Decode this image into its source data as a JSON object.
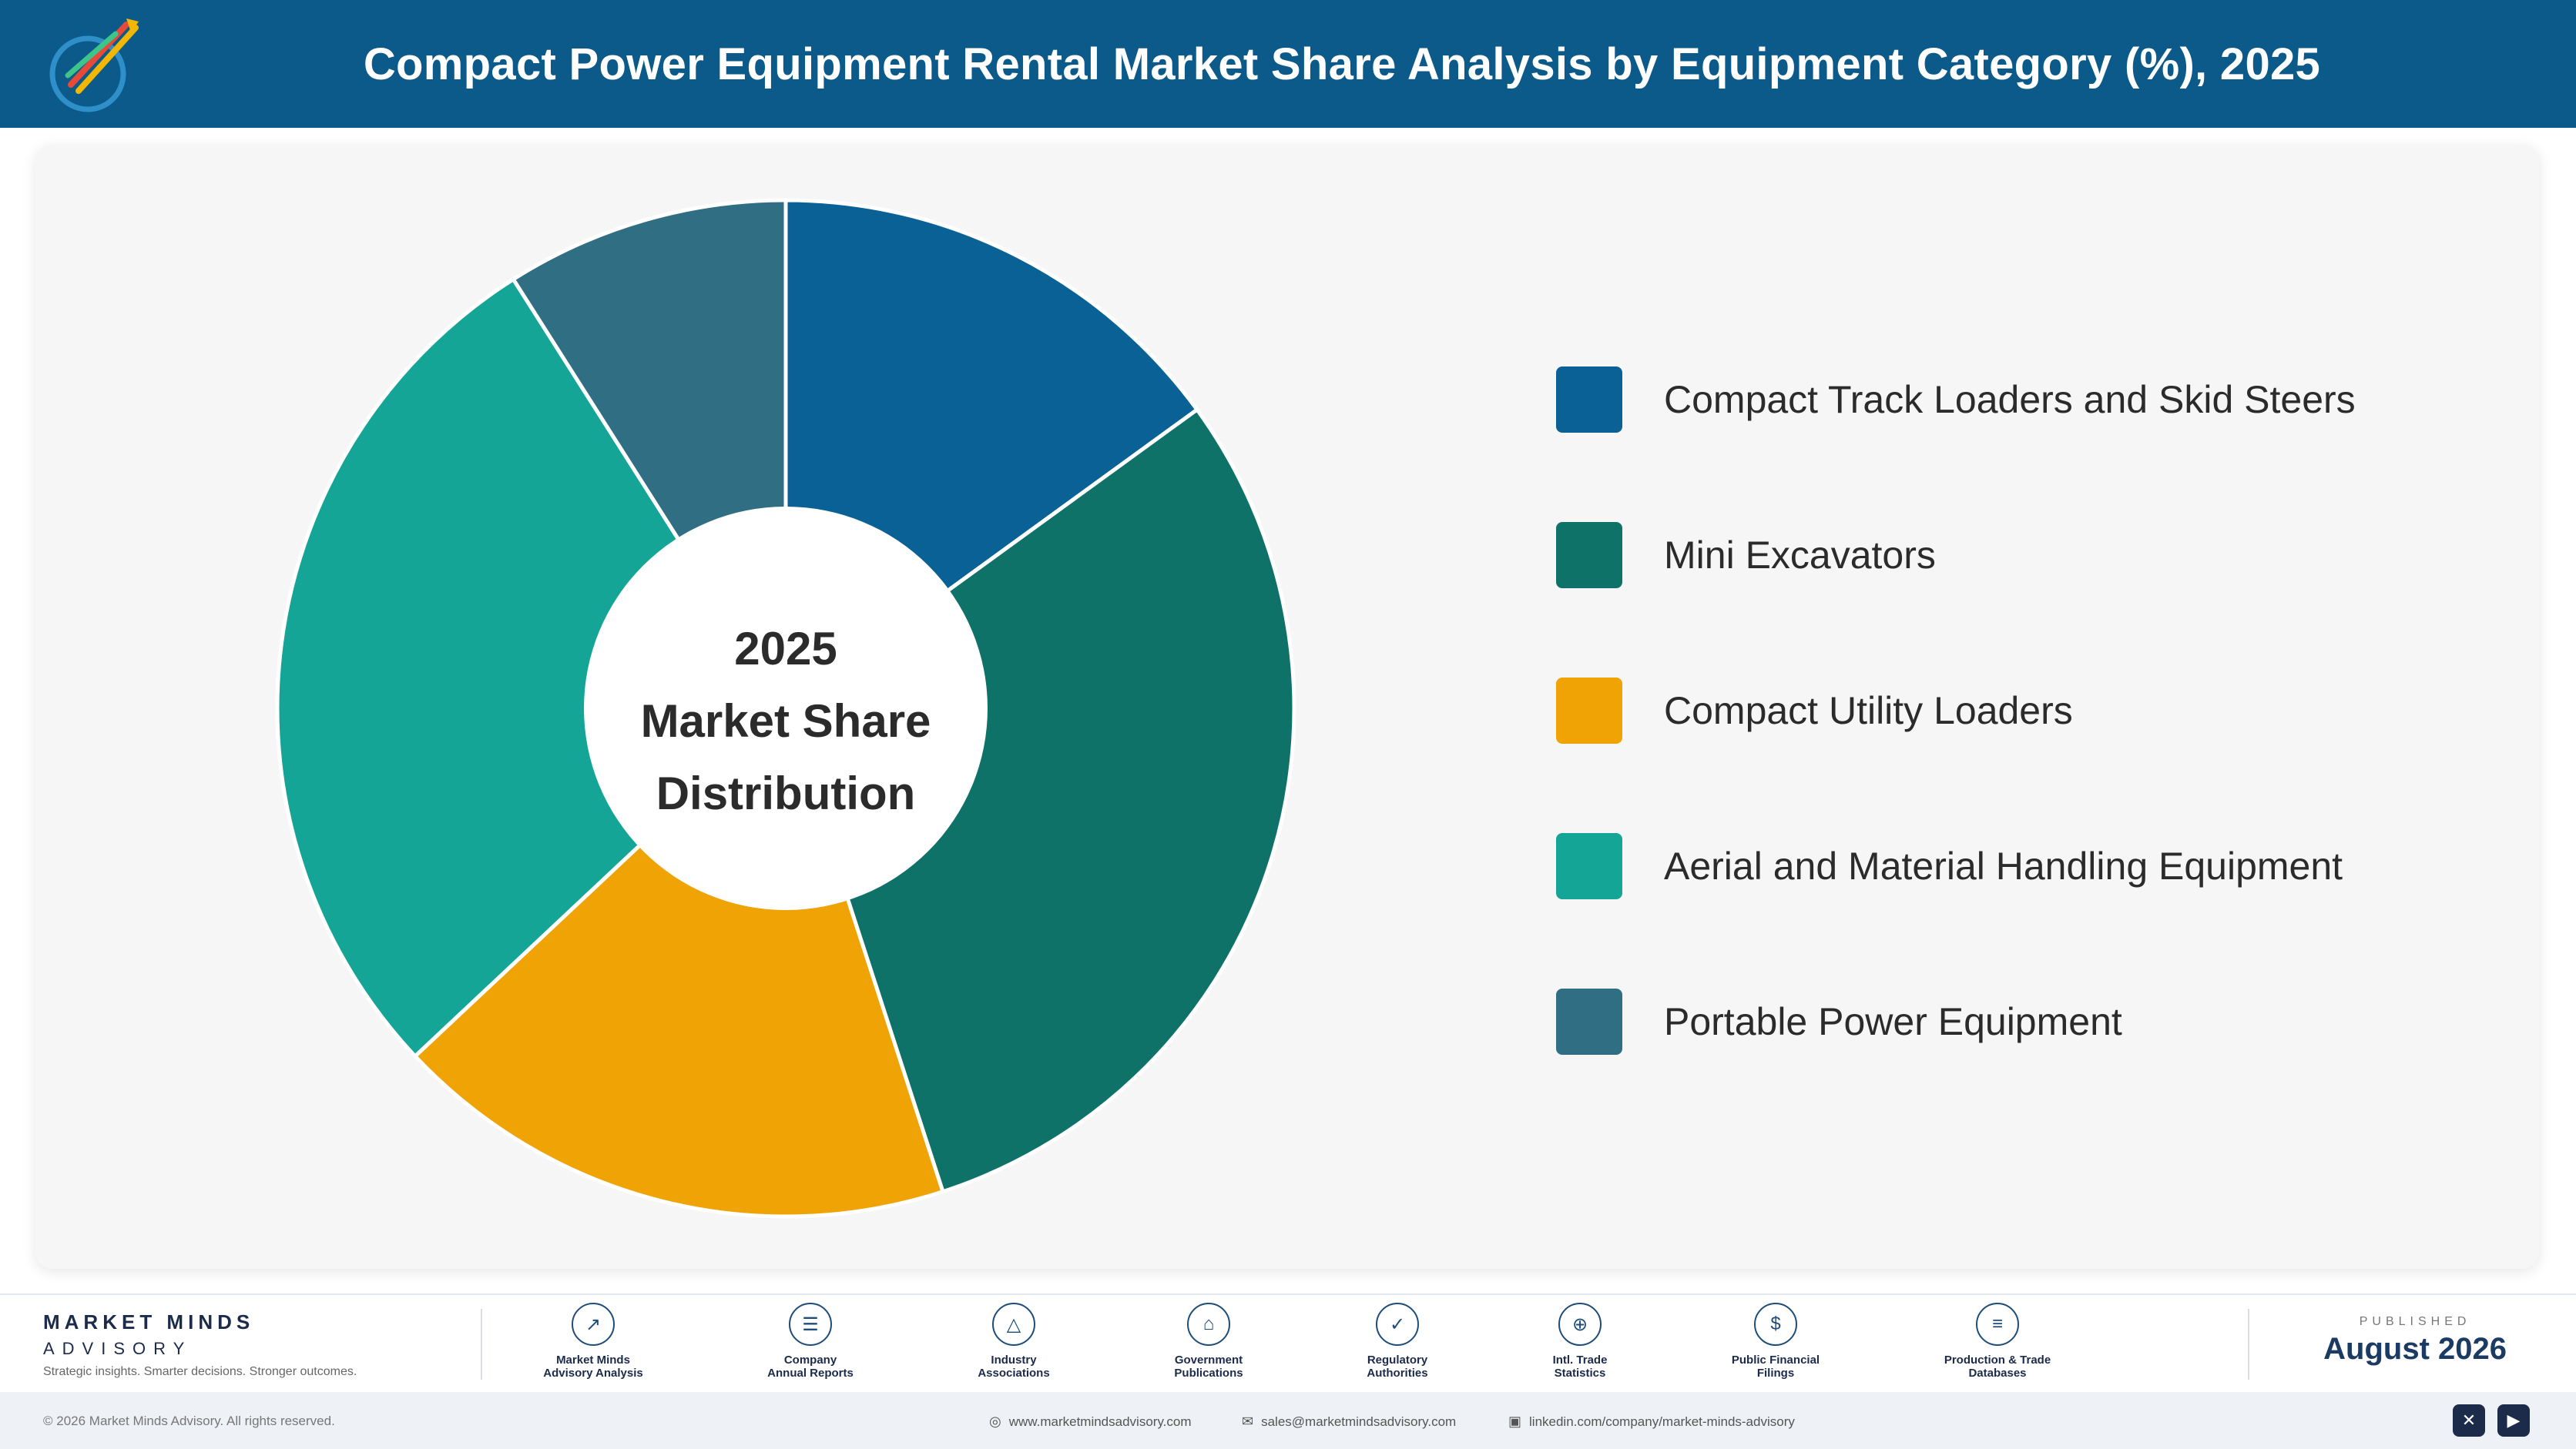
{
  "header": {
    "title": "Compact Power Equipment Rental Market Share Analysis by Equipment Category (%), 2025"
  },
  "chart_data": {
    "type": "pie",
    "donut": true,
    "center_text": [
      "2025",
      "Market Share",
      "Distribution"
    ],
    "categories": [
      "Compact Track Loaders and Skid Steers",
      "Mini Excavators",
      "Compact Utility Loaders",
      "Aerial and Material Handling Equipment",
      "Portable Power Equipment"
    ],
    "values": [
      15,
      30,
      18,
      28,
      9
    ],
    "colors": [
      "#0a6196",
      "#0e7268",
      "#f0a305",
      "#14a596",
      "#306e83"
    ],
    "legend_position": "right"
  },
  "footer": {
    "brand_name": "MARKET MINDS",
    "brand_sub": "ADVISORY",
    "brand_tagline": "Strategic insights. Smarter decisions. Stronger outcomes.",
    "sources": [
      {
        "icon": "chart-icon",
        "line1": "Market Minds",
        "line2": "Advisory Analysis"
      },
      {
        "icon": "document-icon",
        "line1": "Company",
        "line2": "Annual Reports"
      },
      {
        "icon": "network-icon",
        "line1": "Industry",
        "line2": "Associations"
      },
      {
        "icon": "government-icon",
        "line1": "Government",
        "line2": "Publications"
      },
      {
        "icon": "shield-icon",
        "line1": "Regulatory",
        "line2": "Authorities"
      },
      {
        "icon": "globe-icon",
        "line1": "Intl. Trade",
        "line2": "Statistics"
      },
      {
        "icon": "dollar-icon",
        "line1": "Public Financial",
        "line2": "Filings"
      },
      {
        "icon": "database-icon",
        "line1": "Production & Trade",
        "line2": "Databases"
      }
    ],
    "published_label": "PUBLISHED",
    "published_date": "August 2026",
    "copyright": "© 2026 Market Minds Advisory. All rights reserved.",
    "website": "www.marketmindsadvisory.com",
    "email": "sales@marketmindsadvisory.com",
    "linkedin": "linkedin.com/company/market-minds-advisory"
  }
}
